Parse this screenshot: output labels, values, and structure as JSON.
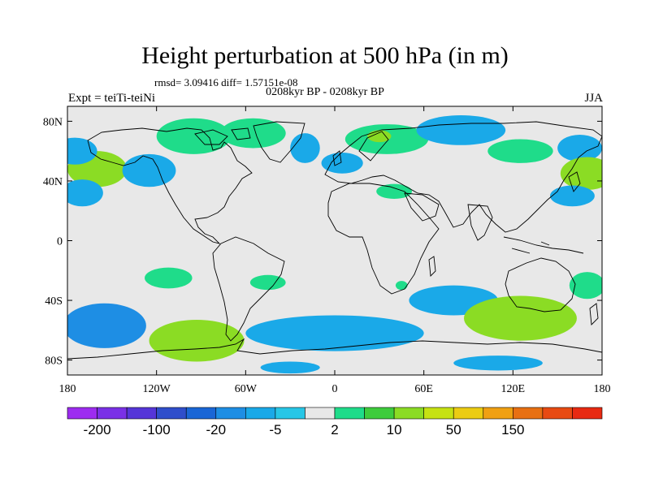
{
  "chart_data": {
    "type": "heatmap",
    "title": "Height perturbation at 500 hPa (in m)",
    "stats_text": "rmsd= 3.09416 diff= 1.57151e-08",
    "subtitle": "0208kyr BP - 0208kyr BP",
    "left_label": "Expt = teiTi-teiNi",
    "right_label": "JJA",
    "x_ticks": [
      "180",
      "120W",
      "60W",
      "0",
      "60E",
      "120E",
      "180"
    ],
    "y_ticks": [
      "80N",
      "40N",
      "0",
      "40S",
      "80S"
    ],
    "lon_range": [
      -180,
      180
    ],
    "lat_range": [
      -90,
      90
    ],
    "colorbar_labels": [
      "-200",
      "-100",
      "-20",
      "-5",
      "2",
      "10",
      "50",
      "150"
    ],
    "colorbar_colors": [
      "#9d2cf0",
      "#7a30e6",
      "#5535d8",
      "#2f4ecb",
      "#1a66d6",
      "#1e8ee4",
      "#1aa9e8",
      "#27c6e6",
      "#e8e8e8",
      "#1fdc8a",
      "#3ecc3c",
      "#8bdc24",
      "#c6e212",
      "#eccc12",
      "#f0a012",
      "#e87012",
      "#e84a12",
      "#e82a12"
    ],
    "anomaly_regions": [
      {
        "lon": -160,
        "lat": 48,
        "rlon": 20,
        "rlat": 12,
        "value": 10
      },
      {
        "lon": -175,
        "lat": 60,
        "rlon": 15,
        "rlat": 9,
        "value": -5
      },
      {
        "lon": -170,
        "lat": 32,
        "rlon": 14,
        "rlat": 9,
        "value": -5
      },
      {
        "lon": -125,
        "lat": 47,
        "rlon": 18,
        "rlat": 11,
        "value": -5
      },
      {
        "lon": -95,
        "lat": 70,
        "rlon": 25,
        "rlat": 12,
        "value": 2
      },
      {
        "lon": -55,
        "lat": 72,
        "rlon": 22,
        "rlat": 10,
        "value": 2
      },
      {
        "lon": -20,
        "lat": 62,
        "rlon": 10,
        "rlat": 10,
        "value": -5
      },
      {
        "lon": 5,
        "lat": 52,
        "rlon": 14,
        "rlat": 7,
        "value": -5
      },
      {
        "lon": 35,
        "lat": 68,
        "rlon": 28,
        "rlat": 10,
        "value": 2
      },
      {
        "lon": 30,
        "lat": 70,
        "rlon": 8,
        "rlat": 4,
        "value": 10
      },
      {
        "lon": 40,
        "lat": 33,
        "rlon": 12,
        "rlat": 5,
        "value": 2
      },
      {
        "lon": 85,
        "lat": 74,
        "rlon": 30,
        "rlat": 10,
        "value": -5
      },
      {
        "lon": 125,
        "lat": 60,
        "rlon": 22,
        "rlat": 8,
        "value": 2
      },
      {
        "lon": 165,
        "lat": 62,
        "rlon": 15,
        "rlat": 9,
        "value": -5
      },
      {
        "lon": 170,
        "lat": 45,
        "rlon": 18,
        "rlat": 11,
        "value": 10
      },
      {
        "lon": 160,
        "lat": 30,
        "rlon": 15,
        "rlat": 7,
        "value": -5
      },
      {
        "lon": -112,
        "lat": -25,
        "rlon": 16,
        "rlat": 7,
        "value": 2
      },
      {
        "lon": -45,
        "lat": -28,
        "rlon": 12,
        "rlat": 5,
        "value": 2
      },
      {
        "lon": 45,
        "lat": -30,
        "rlon": 4,
        "rlat": 3,
        "value": 2
      },
      {
        "lon": 80,
        "lat": -40,
        "rlon": 30,
        "rlat": 10,
        "value": -5
      },
      {
        "lon": 170,
        "lat": -30,
        "rlon": 12,
        "rlat": 9,
        "value": 2
      },
      {
        "lon": -155,
        "lat": -57,
        "rlon": 28,
        "rlat": 15,
        "value": -20
      },
      {
        "lon": -93,
        "lat": -67,
        "rlon": 32,
        "rlat": 14,
        "value": 10
      },
      {
        "lon": 0,
        "lat": -62,
        "rlon": 60,
        "rlat": 12,
        "value": -5
      },
      {
        "lon": 125,
        "lat": -52,
        "rlon": 38,
        "rlat": 15,
        "value": 10
      },
      {
        "lon": -30,
        "lat": -85,
        "rlon": 20,
        "rlat": 4,
        "value": -5
      },
      {
        "lon": 110,
        "lat": -82,
        "rlon": 30,
        "rlat": 5,
        "value": -5
      }
    ]
  }
}
